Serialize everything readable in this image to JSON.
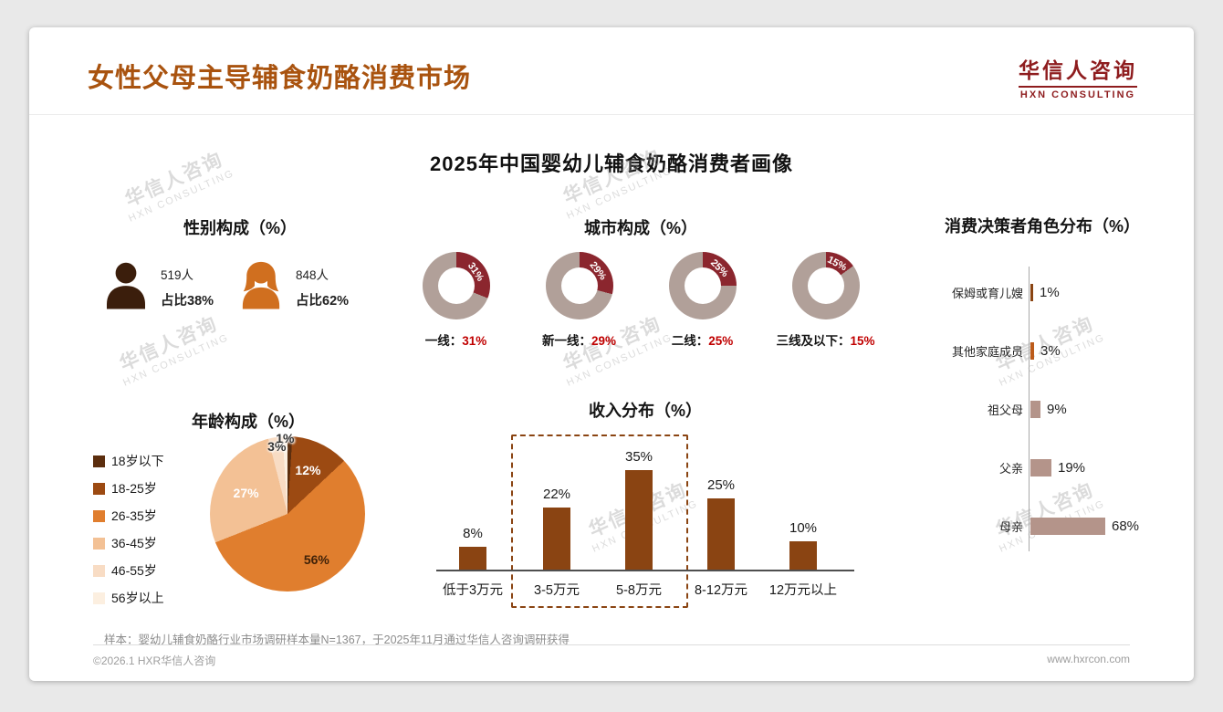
{
  "page": {
    "title": "女性父母主导辅食奶酪消费市场",
    "main_title": "2025年中国婴幼儿辅食奶酪消费者画像",
    "sample_note": "样本：婴幼儿辅食奶酪行业市场调研样本量N=1367，于2025年11月通过华信人咨询调研获得",
    "copyright": "©2026.1 HXR华信人咨询",
    "website": "www.hxrcon.com"
  },
  "logo": {
    "cn": "华信人咨询",
    "en": "HXN CONSULTING"
  },
  "watermark": {
    "line1": "华信人咨询",
    "line2": "HXN CONSULTING"
  },
  "colors": {
    "title": "#a9530f",
    "logo": "#8e1c1e",
    "donut_accent": "#8b262e",
    "donut_base": "#b1a099",
    "city_value": "#c00000",
    "income_bar": "#8a4412",
    "decision_bars": [
      "#8a4412",
      "#bc5b1a",
      "#b4948a",
      "#b4948a",
      "#b4948a"
    ],
    "pie": [
      "#5c2e0e",
      "#9c4a12",
      "#e07e2e",
      "#f3c195",
      "#f8dcc4",
      "#fcefe0"
    ],
    "male_icon": "#3b1e0c",
    "female_icon": "#d06f1f"
  },
  "gender": {
    "title": "性别构成（%）",
    "male": {
      "count": "519人",
      "share": "占比38%"
    },
    "female": {
      "count": "848人",
      "share": "占比62%"
    }
  },
  "city": {
    "title": "城市构成（%）",
    "items": [
      {
        "label": "一线：",
        "value": "31%",
        "pct": 31
      },
      {
        "label": "新一线：",
        "value": "29%",
        "pct": 29
      },
      {
        "label": "二线：",
        "value": "25%",
        "pct": 25
      },
      {
        "label": "三线及以下：",
        "value": "15%",
        "pct": 15
      }
    ]
  },
  "decision": {
    "title": "消费决策者角色分布（%）",
    "items": [
      {
        "label": "保姆或育儿嫂",
        "value": "1%",
        "pct": 1
      },
      {
        "label": "其他家庭成员",
        "value": "3%",
        "pct": 3
      },
      {
        "label": "祖父母",
        "value": "9%",
        "pct": 9
      },
      {
        "label": "父亲",
        "value": "19%",
        "pct": 19
      },
      {
        "label": "母亲",
        "value": "68%",
        "pct": 68
      }
    ]
  },
  "age": {
    "title": "年龄构成（%）",
    "legend": [
      "18岁以下",
      "18-25岁",
      "26-35岁",
      "36-45岁",
      "46-55岁",
      "56岁以上"
    ],
    "values": [
      1,
      12,
      56,
      27,
      3,
      1
    ],
    "labels": [
      "",
      "12%",
      "56%",
      "27%",
      "3%",
      "1%"
    ],
    "label_colors": [
      "",
      "#ffffff",
      "#3f2108",
      "#ffffff",
      "#333333",
      "#333333"
    ]
  },
  "income": {
    "title": "收入分布（%）",
    "categories": [
      "低于3万元",
      "3-5万元",
      "5-8万元",
      "8-12万元",
      "12万元以上"
    ],
    "values": [
      8,
      22,
      35,
      25,
      10
    ]
  },
  "chart_data": [
    {
      "type": "pie",
      "title": "性别构成（%）",
      "categories": [
        "男",
        "女"
      ],
      "values": [
        38,
        62
      ],
      "annotations": [
        "519人",
        "848人"
      ]
    },
    {
      "type": "pie",
      "subtype": "donut-multiples",
      "title": "城市构成（%）",
      "categories": [
        "一线",
        "新一线",
        "二线",
        "三线及以下"
      ],
      "values": [
        31,
        29,
        25,
        15
      ]
    },
    {
      "type": "bar",
      "orientation": "horizontal",
      "title": "消费决策者角色分布（%）",
      "categories": [
        "保姆或育儿嫂",
        "其他家庭成员",
        "祖父母",
        "父亲",
        "母亲"
      ],
      "values": [
        1,
        3,
        9,
        19,
        68
      ],
      "xlabel": "",
      "ylabel": ""
    },
    {
      "type": "pie",
      "title": "年龄构成（%）",
      "categories": [
        "18岁以下",
        "18-25岁",
        "26-35岁",
        "36-45岁",
        "46-55岁",
        "56岁以上"
      ],
      "values": [
        1,
        12,
        56,
        27,
        3,
        1
      ],
      "legend_position": "left"
    },
    {
      "type": "bar",
      "title": "收入分布（%）",
      "categories": [
        "低于3万元",
        "3-5万元",
        "5-8万元",
        "8-12万元",
        "12万元以上"
      ],
      "values": [
        8,
        22,
        35,
        25,
        10
      ],
      "annotations": [
        "dashed highlight around 3-5万元 and 5-8万元"
      ],
      "ylim": [
        0,
        40
      ]
    }
  ]
}
